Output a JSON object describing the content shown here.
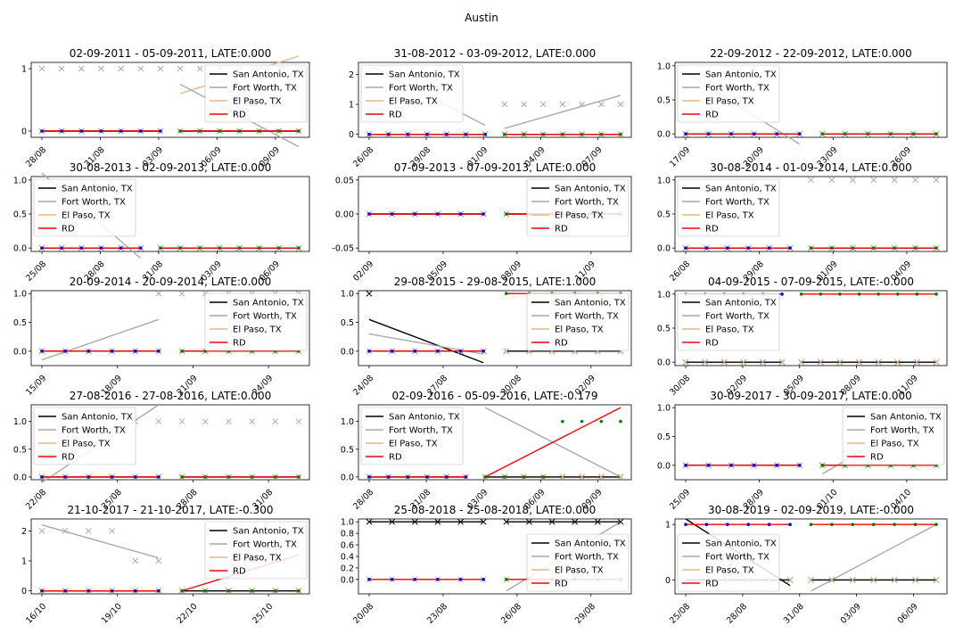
{
  "figure_title": "Austin",
  "legend": [
    {
      "name": "San Antonio, TX",
      "color": "#000000"
    },
    {
      "name": "Fort Worth, TX",
      "color": "#a9a9a9"
    },
    {
      "name": "El Paso, TX",
      "color": "#deb887"
    },
    {
      "name": "RD",
      "color": "#ff0000"
    }
  ],
  "colors": {
    "marker_pre": "#0000ff",
    "marker_post": "#008000",
    "cross_gray": "#a9a9a9",
    "cross_black": "#000000"
  },
  "chart_data": [
    {
      "type": "line",
      "title": "02-09-2011 - 05-09-2011, LATE:0.000",
      "x_ticks": [
        "28/08",
        "31/08",
        "03/09",
        "06/09",
        "09/09"
      ],
      "yticks": [
        "0",
        "1"
      ],
      "ylim": [
        -0.1,
        1.1
      ],
      "legend_position": "upper-right",
      "pre": {
        "n": 7,
        "fw": 1,
        "sa": 0,
        "ep": 0,
        "rd": 0
      },
      "post": {
        "n": 7,
        "fw": 1,
        "sa": 0,
        "ep": 0,
        "rd": 0,
        "fw_line": [
          0.75,
          -0.25
        ],
        "ep_line": [
          0.6,
          1.2
        ]
      }
    },
    {
      "type": "line",
      "title": "31-08-2012 - 03-09-2012, LATE:0.000",
      "x_ticks": [
        "26/08",
        "29/08",
        "01/09",
        "04/09",
        "07/09"
      ],
      "yticks": [
        "0",
        "1",
        "2"
      ],
      "ylim": [
        -0.1,
        2.4
      ],
      "legend_position": "upper-left",
      "pre": {
        "n": 7,
        "fw": 0,
        "sa": 0,
        "ep": 0,
        "rd": 0,
        "fw_line": [
          2.3,
          0.3
        ]
      },
      "post": {
        "n": 7,
        "fw": 1,
        "sa": 0,
        "ep": 0,
        "rd": 0,
        "fw_line": [
          0.2,
          1.3
        ]
      }
    },
    {
      "type": "line",
      "title": "22-09-2012 - 22-09-2012, LATE:0.000",
      "x_ticks": [
        "17/09",
        "20/09",
        "23/09",
        "26/09"
      ],
      "yticks": [
        "0.0",
        "0.5",
        "1.0"
      ],
      "ylim": [
        -0.05,
        1.05
      ],
      "legend_position": "upper-left",
      "pre": {
        "n": 6,
        "fw": 0,
        "sa": 0,
        "ep": 0,
        "rd": 0,
        "fw_line": [
          0.9,
          -0.15
        ]
      },
      "post": {
        "n": 6,
        "fw": 0,
        "sa": 0,
        "ep": 0,
        "rd": 0
      }
    },
    {
      "type": "line",
      "title": "30-08-2013 - 02-09-2013, LATE:0.000",
      "x_ticks": [
        "25/08",
        "28/08",
        "31/08",
        "03/09",
        "06/09"
      ],
      "yticks": [
        "0.0",
        "0.5",
        "1.0"
      ],
      "ylim": [
        -0.05,
        1.05
      ],
      "legend_position": "upper-left",
      "pre": {
        "n": 6,
        "fw": 0,
        "sa": 0,
        "ep": 0,
        "rd": 0,
        "fw_line": [
          1.1,
          -0.15
        ]
      },
      "post": {
        "n": 8,
        "fw": 0,
        "sa": 0,
        "ep": 0,
        "rd": 0
      }
    },
    {
      "type": "line",
      "title": "07-09-2013 - 07-09-2013, LATE:0.000",
      "x_ticks": [
        "02/09",
        "05/09",
        "08/09",
        "11/09"
      ],
      "yticks": [
        "-0.05",
        "0.00",
        "0.05"
      ],
      "ylim": [
        -0.055,
        0.055
      ],
      "legend_position": "upper-right",
      "pre": {
        "n": 6,
        "fw": 0,
        "sa": 0,
        "ep": 0,
        "rd": 0
      },
      "post": {
        "n": 6,
        "fw": 0,
        "sa": 0,
        "ep": 0,
        "rd": 0
      }
    },
    {
      "type": "line",
      "title": "30-08-2014 - 01-09-2014, LATE:0.000",
      "x_ticks": [
        "26/08",
        "29/08",
        "01/09",
        "04/09"
      ],
      "yticks": [
        "0.0",
        "0.5",
        "1.0"
      ],
      "ylim": [
        -0.05,
        1.05
      ],
      "legend_position": "upper-left",
      "pre": {
        "n": 6,
        "fw": 0,
        "sa": 0,
        "ep": 0,
        "rd": 0
      },
      "post": {
        "n": 7,
        "fw": 1,
        "sa": 0,
        "ep": 0,
        "rd": 0
      }
    },
    {
      "type": "line",
      "title": "20-09-2014 - 20-09-2014, LATE:0.000",
      "x_ticks": [
        "15/09",
        "18/09",
        "21/09",
        "24/09"
      ],
      "yticks": [
        "0.0",
        "0.5",
        "1.0"
      ],
      "ylim": [
        -0.25,
        1.05
      ],
      "legend_position": "upper-right",
      "pre": {
        "n": 6,
        "fw": 0,
        "sa": 0,
        "ep": 0,
        "rd": 0,
        "fw_line": [
          -0.15,
          0.55
        ],
        "fw_last_cross": 1
      },
      "post": {
        "n": 6,
        "fw": 1,
        "sa": 0,
        "ep": 0,
        "rd": 0
      }
    },
    {
      "type": "line",
      "title": "29-08-2015 - 29-08-2015, LATE:1.000",
      "x_ticks": [
        "24/08",
        "27/08",
        "30/08",
        "02/09"
      ],
      "yticks": [
        "0.0",
        "0.5",
        "1.0"
      ],
      "ylim": [
        -0.25,
        1.05
      ],
      "legend_position": "upper-right",
      "pre": {
        "n": 6,
        "fw": 0,
        "sa": 0,
        "ep": 0,
        "rd": 0,
        "sa_first_cross": 1,
        "sa_line": [
          0.55,
          -0.2
        ],
        "fw_line": [
          0.3,
          -0.05
        ]
      },
      "post": {
        "n": 6,
        "fw": 0,
        "sa": 0,
        "ep": 0,
        "rd": 1
      }
    },
    {
      "type": "line",
      "title": "04-09-2015 - 07-09-2015, LATE:-0.000",
      "x_ticks": [
        "30/08",
        "02/09",
        "05/09",
        "08/09",
        "11/09"
      ],
      "yticks": [
        "0.0",
        "0.5",
        "1.0"
      ],
      "ylim": [
        -0.05,
        1.05
      ],
      "legend_position": "upper-left",
      "pre": {
        "n": 6,
        "fw": 0,
        "sa": 0,
        "ep": 0,
        "rd": 1
      },
      "post": {
        "n": 8,
        "fw": 0,
        "sa": 0,
        "ep": 0,
        "rd": 1
      }
    },
    {
      "type": "line",
      "title": "27-08-2016 - 27-08-2016, LATE:0.000",
      "x_ticks": [
        "22/08",
        "25/08",
        "28/08",
        "31/08"
      ],
      "yticks": [
        "0.0",
        "0.5",
        "1.0"
      ],
      "ylim": [
        -0.05,
        1.3
      ],
      "legend_position": "upper-left",
      "pre": {
        "n": 6,
        "fw": 0,
        "sa": 0,
        "ep": 0,
        "rd": 0,
        "fw_line": [
          -0.1,
          1.3
        ],
        "fw_tail_cross": 1
      },
      "post": {
        "n": 6,
        "fw": 1,
        "sa": 0,
        "ep": 0,
        "rd": 0
      }
    },
    {
      "type": "line",
      "title": "02-09-2016 - 05-09-2016, LATE:-0.179",
      "x_ticks": [
        "28/08",
        "31/08",
        "03/09",
        "06/09",
        "09/09"
      ],
      "yticks": [
        "0.0",
        "0.5",
        "1.0"
      ],
      "ylim": [
        -0.05,
        1.3
      ],
      "legend_position": "upper-left",
      "pre": {
        "n": 6,
        "fw": 0,
        "sa": 0,
        "ep": 0,
        "rd": 0
      },
      "post": {
        "n": 8,
        "fw": 0,
        "sa": 0,
        "ep": 0,
        "rd": 0,
        "fw_line": [
          1.25,
          0.0
        ],
        "rd_line": [
          0.0,
          1.25
        ],
        "green_top": 1
      }
    },
    {
      "type": "line",
      "title": "30-09-2017 - 30-09-2017, LATE:0.000",
      "x_ticks": [
        "25/09",
        "28/09",
        "01/10",
        "04/10"
      ],
      "yticks": [
        "0.0",
        "0.5",
        "1.0"
      ],
      "ylim": [
        -0.25,
        1.05
      ],
      "legend_position": "upper-right",
      "pre": {
        "n": 6,
        "fw": 0,
        "sa": 0,
        "ep": 0,
        "rd": 0
      },
      "post": {
        "n": 6,
        "fw": 0,
        "sa": 0,
        "ep": 0,
        "rd": 0,
        "fw_line": [
          -0.15,
          1.0
        ]
      }
    },
    {
      "type": "line",
      "title": "21-10-2017 - 21-10-2017, LATE:-0.300",
      "x_ticks": [
        "16/10",
        "19/10",
        "22/10",
        "25/10"
      ],
      "yticks": [
        "0",
        "1",
        "2"
      ],
      "ylim": [
        -0.1,
        2.4
      ],
      "legend_position": "upper-right",
      "pre": {
        "n": 6,
        "fw": 0,
        "sa": 0,
        "ep": 0,
        "rd": 0,
        "fw_line": [
          2.2,
          1.1
        ],
        "fw_cross_vals": [
          2,
          2,
          2,
          2,
          1,
          1
        ]
      },
      "post": {
        "n": 6,
        "fw": 0,
        "sa": 0,
        "ep": 0,
        "rd": 0,
        "rd_line": [
          0.0,
          1.2
        ]
      }
    },
    {
      "type": "line",
      "title": "25-08-2018 - 25-08-2018, LATE:0.000",
      "x_ticks": [
        "20/08",
        "23/08",
        "26/08",
        "29/08"
      ],
      "yticks": [
        "0.0",
        "0.2",
        "0.4",
        "0.6",
        "0.8",
        "1.0"
      ],
      "ylim": [
        -0.25,
        1.05
      ],
      "legend_position": "lower-right",
      "pre": {
        "n": 6,
        "fw": 0,
        "sa": 1,
        "ep": 0,
        "rd": 0
      },
      "post": {
        "n": 6,
        "fw": 0,
        "sa": 1,
        "ep": 0,
        "rd": 0,
        "fw_line": [
          -0.2,
          1.0
        ]
      }
    },
    {
      "type": "line",
      "title": "30-08-2019 - 02-09-2019, LATE:-0.000",
      "x_ticks": [
        "25/08",
        "28/08",
        "31/08",
        "03/09",
        "06/09"
      ],
      "yticks": [
        "0",
        "1"
      ],
      "ylim": [
        -0.25,
        1.1
      ],
      "legend_position": "lower-left",
      "pre": {
        "n": 6,
        "fw": 0,
        "sa": 0,
        "ep": 0,
        "rd": 1,
        "sa_line": [
          1.1,
          -0.1
        ]
      },
      "post": {
        "n": 7,
        "fw": 0,
        "sa": 0,
        "ep": 0,
        "rd": 1,
        "fw_line": [
          -0.2,
          1.0
        ]
      }
    }
  ]
}
